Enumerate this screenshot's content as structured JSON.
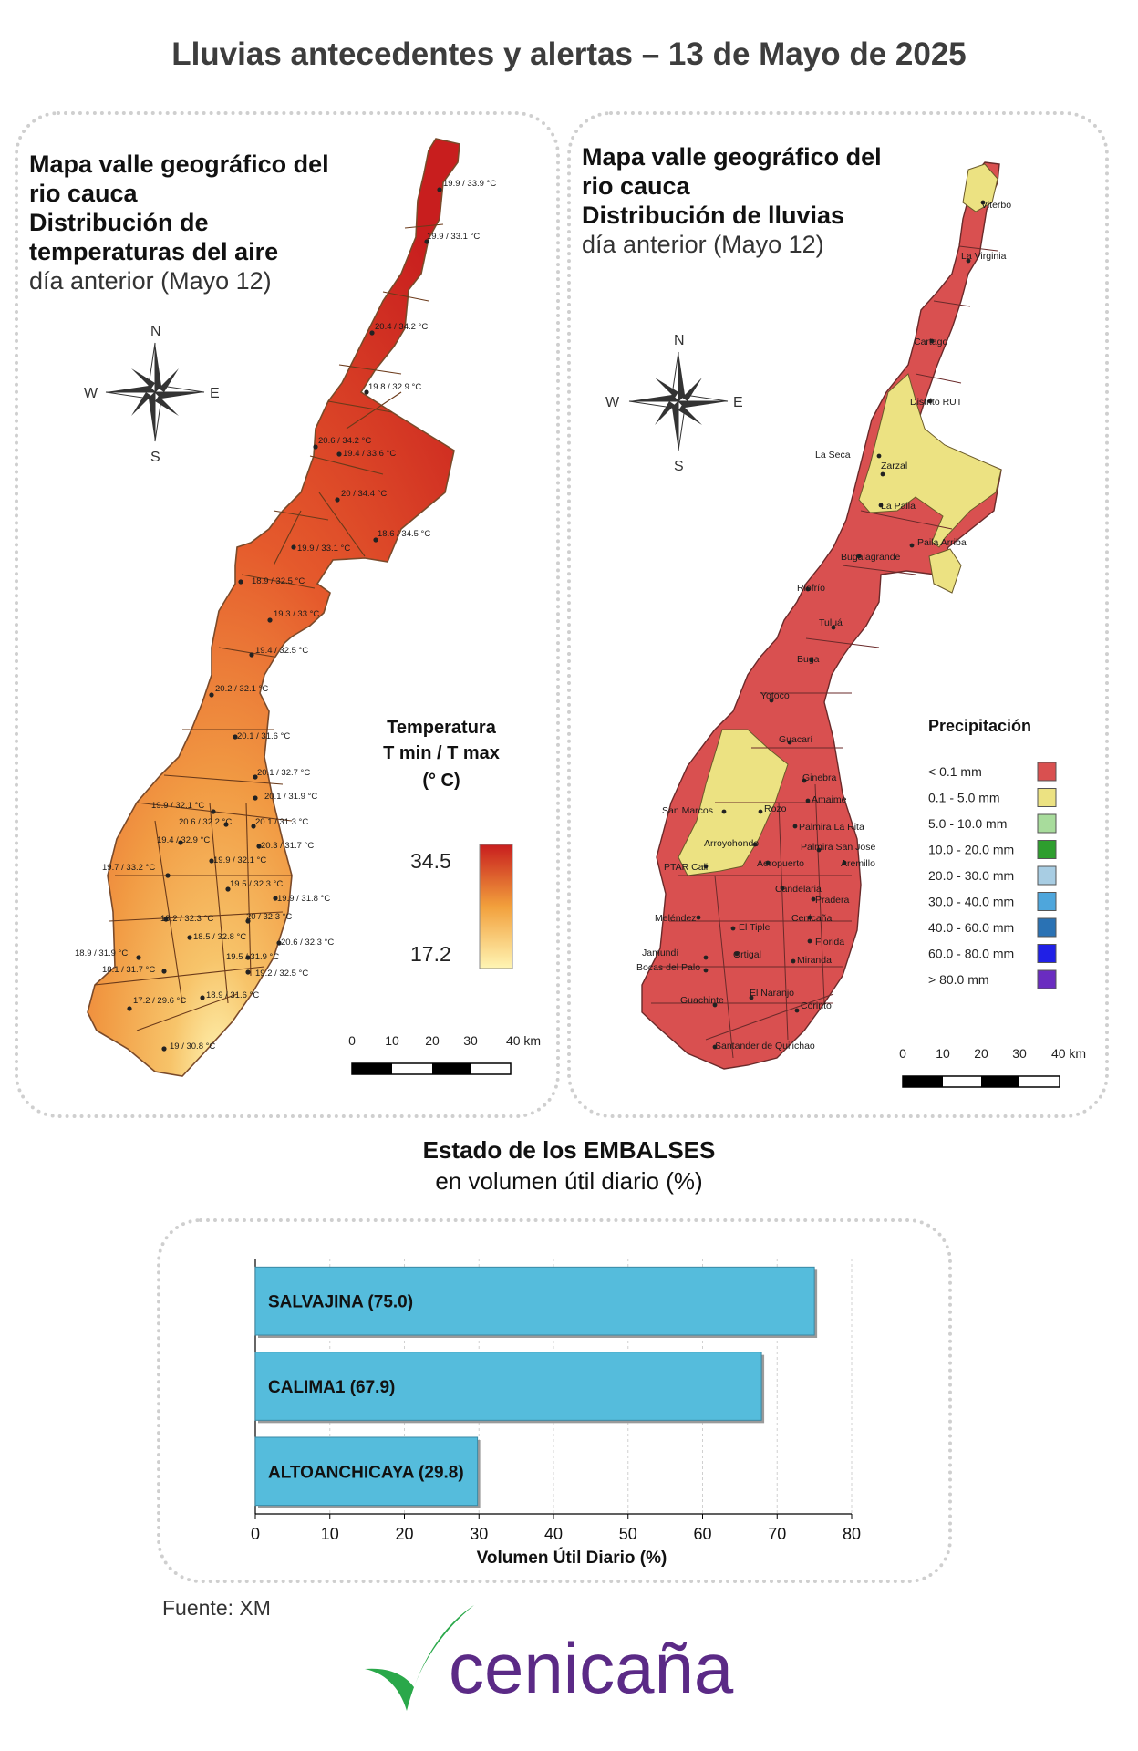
{
  "title": "Lluvias antecedentes y alertas – 13 de Mayo de 2025",
  "temp_map": {
    "title_line1": "Mapa valle geográfico del",
    "title_line2": "rio cauca",
    "title_line3": "Distribución de",
    "title_line4": "temperaturas del aire",
    "subtitle": "día anterior (Mayo 12)",
    "compass": {
      "n": "N",
      "s": "S",
      "e": "E",
      "w": "W"
    },
    "legend_title_1": "Temperatura",
    "legend_title_2": "T min / T max",
    "legend_title_3": "(° C)",
    "legend_max": "34.5",
    "legend_min": "17.2",
    "legend_colors": {
      "high": "#c81e1e",
      "mid": "#f2a03c",
      "low": "#fff5b4"
    },
    "scale_labels": [
      "0",
      "10",
      "20",
      "30",
      "40 km"
    ],
    "stations": [
      "19.9 / 33.9 °C",
      "19.9 / 33.1 °C",
      "20.4 / 34.2 °C",
      "19.8 / 32.9 °C",
      "20.6 / 34.2 °C",
      "19.4 / 33.6 °C",
      "20 / 34.4 °C",
      "18.6 / 34.5 °C",
      "19.9 / 33.1 °C",
      "18.9 / 32.5 °C",
      "19.3 / 33 °C",
      "19.4 / 32.5 °C",
      "20.2 / 32.1 °C",
      "20.1 / 31.6 °C",
      "20.1 / 32.7 °C",
      "20.1 / 31.9 °C",
      "19.9 / 32.1 °C",
      "20.6 / 32.2 °C",
      "20.1 / 31.3 °C",
      "19.4 / 32.9 °C",
      "20.3 / 31.7 °C",
      "19.9 / 32.1 °C",
      "19.7 / 33.2 °C",
      "19.5 / 32.3 °C",
      "19.9 / 31.8 °C",
      "18.2 / 32.3 °C",
      "20 / 32.3 °C",
      "18.5 / 32.8 °C",
      "20.6 / 32.3 °C",
      "18.9 / 31.9 °C",
      "19.5 / 31.9 °C",
      "18.1 / 31.7 °C",
      "19.2 / 32.5 °C",
      "17.2 / 29.6 °C",
      "18.9 / 31.6 °C",
      "19 / 30.8 °C"
    ]
  },
  "rain_map": {
    "title_line1": "Mapa valle geográfico del",
    "title_line2": "rio cauca",
    "title_line3": "Distribución de lluvias",
    "subtitle": "día anterior (Mayo 12)",
    "compass": {
      "n": "N",
      "s": "S",
      "e": "E",
      "w": "W"
    },
    "legend_title": "Precipitación",
    "legend": [
      {
        "label": "< 0.1 mm",
        "color": "#d95050"
      },
      {
        "label": "0.1 - 5.0 mm",
        "color": "#ece282"
      },
      {
        "label": "5.0 - 10.0 mm",
        "color": "#a8dc9c"
      },
      {
        "label": "10.0 - 20.0 mm",
        "color": "#2e9e2e"
      },
      {
        "label": "20.0 - 30.0 mm",
        "color": "#a8cde3"
      },
      {
        "label": "30.0 - 40.0 mm",
        "color": "#4ea6dc"
      },
      {
        "label": "40.0 - 60.0 mm",
        "color": "#2a72b4"
      },
      {
        "label": "60.0 - 80.0 mm",
        "color": "#2020e6"
      },
      {
        "label": "> 80.0 mm",
        "color": "#6a2cc0"
      }
    ],
    "scale_labels": [
      "0",
      "10",
      "20",
      "30",
      "40 km"
    ],
    "places": [
      "Viterbo",
      "La Virginia",
      "Cartago",
      "Distrito RUT",
      "La Seca",
      "Zarzal",
      "La Paila",
      "Paila Arriba",
      "Bugalagrande",
      "Riofrío",
      "Tuluá",
      "Buga",
      "Yotoco",
      "Guacarí",
      "Ginebra",
      "Amaime",
      "San Marcos",
      "Rozo",
      "Palmira La Rita",
      "Arroyohondo",
      "Palmira San Jose",
      "Aeropuerto",
      "Aremillo",
      "PTAR Cali",
      "Candelaria",
      "Pradera",
      "Meléndez",
      "Cenicaña",
      "El Tiple",
      "Florida",
      "Jamundí",
      "Ortigal",
      "Bocas del Palo",
      "Miranda",
      "El Naranjo",
      "Guachinte",
      "Corinto",
      "Santander de Quilichao"
    ]
  },
  "reservoirs": {
    "heading_bold": "Estado de los EMBALSES",
    "heading_sub": "en volumen útil diario (%)",
    "source": "Fuente: XM"
  },
  "chart_data": {
    "type": "bar",
    "orientation": "horizontal",
    "categories": [
      "SALVAJINA",
      "CALIMA1",
      "ALTOANCHICAYA"
    ],
    "bar_labels": [
      "SALVAJINA (75.0)",
      "CALIMA1 (67.9)",
      "ALTOANCHICAYA (29.8)"
    ],
    "values": [
      75.0,
      67.9,
      29.8
    ],
    "xlabel": "Volumen Útil Diario (%)",
    "xlim": [
      0,
      80
    ],
    "xticks": [
      "0",
      "10",
      "20",
      "30",
      "40",
      "50",
      "60",
      "70",
      "80"
    ],
    "grid": true,
    "bar_color": "#55bcdc"
  },
  "logo": {
    "text": "cenicaña",
    "text_color": "#5b2a86",
    "mark_color": "#2aa84a"
  }
}
